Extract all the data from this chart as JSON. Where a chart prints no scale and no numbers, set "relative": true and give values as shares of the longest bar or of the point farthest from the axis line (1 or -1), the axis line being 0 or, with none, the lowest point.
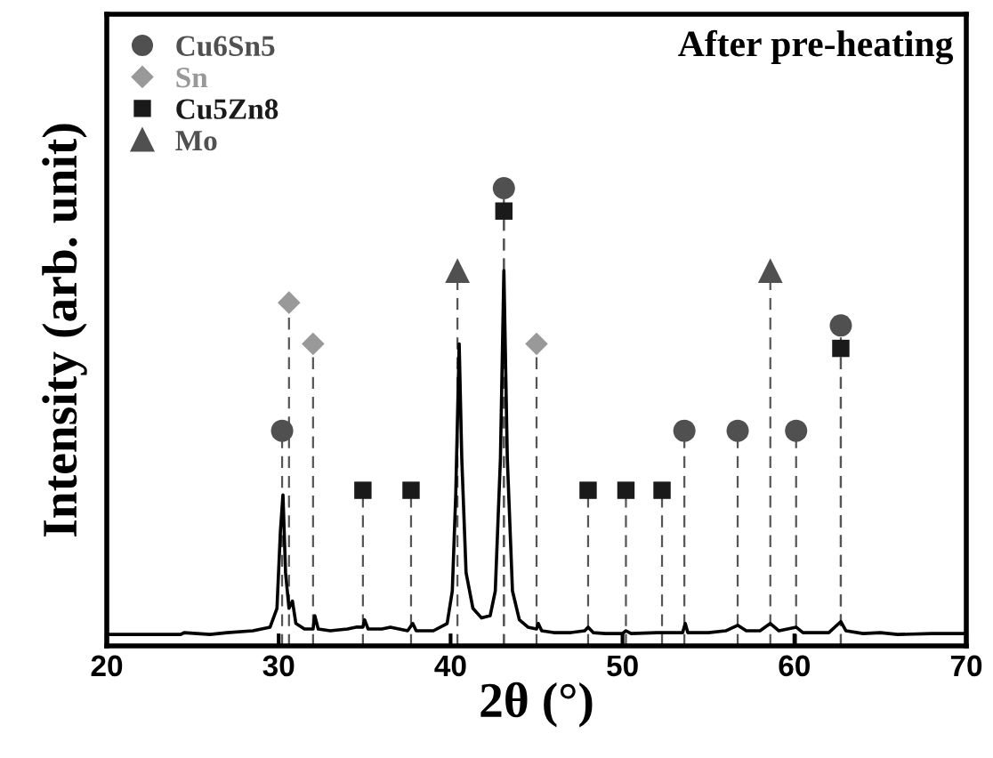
{
  "chart_data": {
    "type": "line",
    "relative": true,
    "title": "After pre-heating",
    "xlabel": "2θ (°)",
    "ylabel": "Intensity (arb. unit)",
    "xlim": [
      20,
      70
    ],
    "xticks": [
      20,
      30,
      40,
      50,
      60,
      70
    ],
    "grid": false,
    "legend": "top left",
    "series": [
      {
        "color": "#000000",
        "x": [
          20,
          24.3,
          24.5,
          26,
          27,
          28.5,
          29.5,
          29.9,
          30.1,
          30.25,
          30.4,
          30.6,
          30.8,
          31.0,
          31.5,
          32.0,
          32.1,
          32.3,
          33,
          34,
          34.5,
          34.9,
          35.0,
          35.2,
          36,
          36.5,
          37.5,
          37.8,
          38,
          39,
          39.8,
          40.1,
          40.3,
          40.5,
          40.65,
          40.9,
          41.3,
          41.8,
          42.3,
          42.6,
          42.9,
          43.1,
          43.3,
          43.6,
          44,
          44.5,
          45,
          45.1,
          45.3,
          46,
          47,
          47.8,
          48.0,
          48.3,
          49,
          50,
          50.2,
          50.5,
          52,
          53.5,
          53.65,
          53.8,
          55,
          56,
          56.7,
          57.2,
          58,
          58.6,
          59.1,
          60.1,
          60.5,
          62,
          62.7,
          63.0,
          64,
          65,
          66,
          68,
          70
        ],
        "values": [
          0.025,
          0.025,
          0.029,
          0.025,
          0.029,
          0.033,
          0.041,
          0.082,
          0.25,
          0.33,
          0.16,
          0.082,
          0.098,
          0.049,
          0.037,
          0.037,
          0.066,
          0.037,
          0.033,
          0.037,
          0.041,
          0.041,
          0.057,
          0.037,
          0.037,
          0.041,
          0.033,
          0.049,
          0.033,
          0.033,
          0.049,
          0.12,
          0.33,
          0.66,
          0.41,
          0.16,
          0.082,
          0.061,
          0.066,
          0.12,
          0.41,
          0.82,
          0.41,
          0.12,
          0.057,
          0.041,
          0.037,
          0.049,
          0.033,
          0.029,
          0.029,
          0.033,
          0.041,
          0.029,
          0.027,
          0.027,
          0.033,
          0.027,
          0.029,
          0.029,
          0.049,
          0.029,
          0.029,
          0.033,
          0.045,
          0.033,
          0.033,
          0.049,
          0.033,
          0.041,
          0.029,
          0.029,
          0.053,
          0.033,
          0.027,
          0.029,
          0.025,
          0.027,
          0.027
        ]
      },
      {
        "type": "lollipop",
        "name": "Cu6Sn5",
        "color": "#505050",
        "marker": "circle",
        "line_style": "dashed",
        "x": [
          30.2,
          43.1,
          53.6,
          56.7,
          60.1,
          62.7
        ],
        "values": [
          0.47,
          1.0,
          0.47,
          0.47,
          0.47,
          0.7
        ]
      },
      {
        "type": "lollipop",
        "name": "Sn",
        "color": "#999999",
        "marker": "diamond",
        "line_style": "dashed",
        "x": [
          30.6,
          32.0,
          45.0
        ],
        "values": [
          0.75,
          0.66,
          0.66
        ]
      },
      {
        "type": "lollipop",
        "name": "Cu5Zn8",
        "color": "#1a1a1a",
        "marker": "square",
        "line_style": "dashed",
        "x": [
          34.9,
          37.7,
          43.1,
          48.0,
          50.2,
          52.3,
          62.7
        ],
        "values": [
          0.34,
          0.34,
          0.95,
          0.34,
          0.34,
          0.34,
          0.65
        ]
      },
      {
        "type": "lollipop",
        "name": "Mo",
        "color": "#505050",
        "marker": "triangle",
        "line_style": "dashed",
        "x": [
          40.4,
          58.6
        ],
        "values": [
          0.82,
          0.82
        ]
      }
    ]
  }
}
